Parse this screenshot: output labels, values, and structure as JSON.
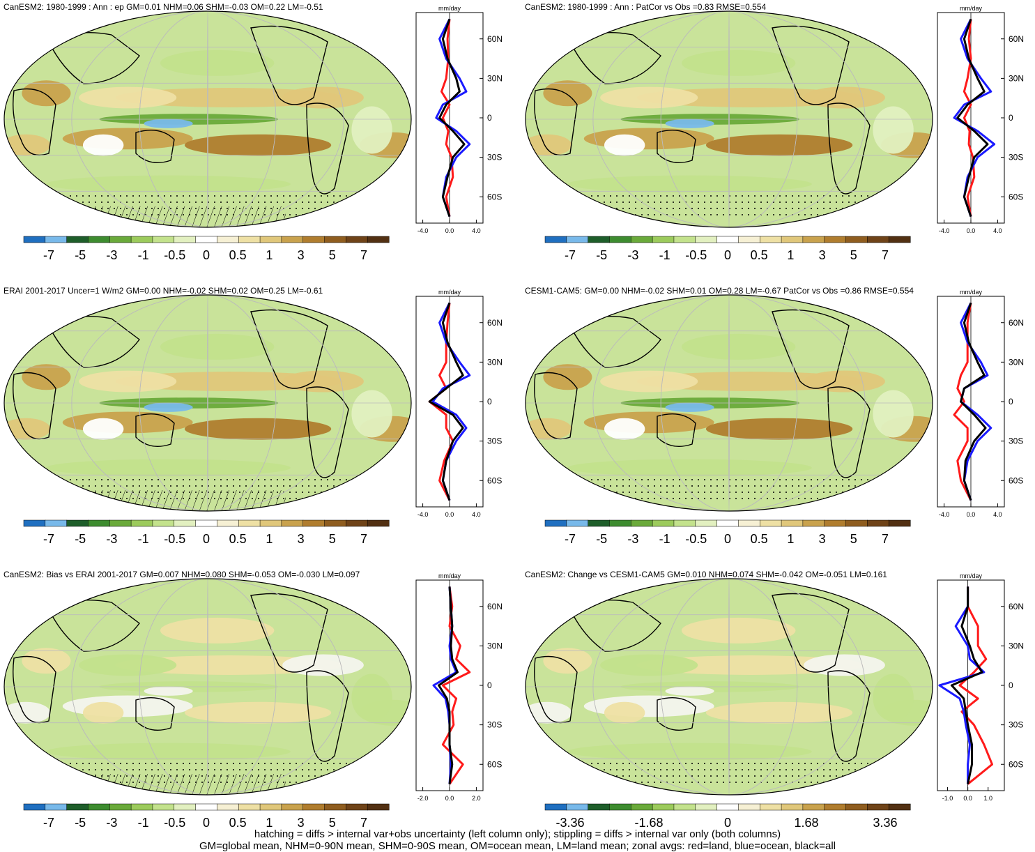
{
  "panels": [
    {
      "title": "CanESM2: 1980-1999 : Ann : ep GM=0.01 NHM=0.06 SHM=-0.03 OM=0.22 LM=-0.51",
      "colorbar_labels": [
        "-7",
        "-5",
        "-3",
        "-1",
        "-0.5",
        "0",
        "0.5",
        "1",
        "3",
        "5",
        "7"
      ],
      "zonal_units": "mm/day",
      "zonal_xticks": [
        "-4.0",
        "0.0",
        "4.0"
      ],
      "lat_ticks": [
        "60N",
        "30N",
        "0",
        "30S",
        "60S"
      ],
      "hatching": true
    },
    {
      "title": "CanESM2: 1980-1999 : Ann : PatCor vs Obs =0.83 RMSE=0.554",
      "colorbar_labels": [
        "-7",
        "-5",
        "-3",
        "-1",
        "-0.5",
        "0",
        "0.5",
        "1",
        "3",
        "5",
        "7"
      ],
      "zonal_units": "mm/day",
      "zonal_xticks": [
        "-4.0",
        "0.0",
        "4.0"
      ],
      "lat_ticks": [
        "60N",
        "30N",
        "0",
        "30S",
        "60S"
      ],
      "hatching": false
    },
    {
      "title": "ERAI 2001-2017 Uncer=1 W/m2 GM=0.00 NHM=-0.02 SHM=0.02 OM=0.25 LM=-0.61",
      "colorbar_labels": [
        "-7",
        "-5",
        "-3",
        "-1",
        "-0.5",
        "0",
        "0.5",
        "1",
        "3",
        "5",
        "7"
      ],
      "zonal_units": "mm/day",
      "zonal_xticks": [
        "-4.0",
        "0.0",
        "4.0"
      ],
      "lat_ticks": [
        "60N",
        "30N",
        "0",
        "30S",
        "60S"
      ],
      "hatching": true
    },
    {
      "title": "CESM1-CAM5: GM=0.00 NHM=-0.02 SHM=0.01 OM=0.28 LM=-0.67 PatCor vs Obs =0.86 RMSE=0.554",
      "colorbar_labels": [
        "-7",
        "-5",
        "-3",
        "-1",
        "-0.5",
        "0",
        "0.5",
        "1",
        "3",
        "5",
        "7"
      ],
      "zonal_units": "mm/day",
      "zonal_xticks": [
        "-4.0",
        "0.0",
        "4.0"
      ],
      "lat_ticks": [
        "60N",
        "30N",
        "0",
        "30S",
        "60S"
      ],
      "hatching": false
    },
    {
      "title": "CanESM2: Bias vs ERAI 2001-2017 GM=0.007 NHM=0.080 SHM=-0.053 OM=-0.030 LM=0.097",
      "colorbar_labels": [
        "-7",
        "-5",
        "-3",
        "-1",
        "-0.5",
        "0",
        "0.5",
        "1",
        "3",
        "5",
        "7"
      ],
      "zonal_units": "mm/day",
      "zonal_xticks": [
        "-2.0",
        "0.0",
        "2.0"
      ],
      "lat_ticks": [
        "60N",
        "30N",
        "0",
        "30S",
        "60S"
      ],
      "hatching": true
    },
    {
      "title": "CanESM2: Change vs CESM1-CAM5 GM=0.010 NHM=0.074 SHM=-0.042 OM=-0.051 LM=0.161",
      "colorbar_labels": [
        "-3.36",
        "-1.68",
        "0",
        "1.68",
        "3.36"
      ],
      "zonal_units": "mm/day",
      "zonal_xticks": [
        "-1.0",
        "0.0",
        "1.0"
      ],
      "lat_ticks": [
        "60N",
        "30N",
        "0",
        "30S",
        "60S"
      ],
      "hatching": false
    }
  ],
  "colors": {
    "colorbar": [
      "#1f6fc0",
      "#78b9ea",
      "#1e5e2a",
      "#3d8c2f",
      "#6aaa3a",
      "#9ccb5c",
      "#c3e28c",
      "#e2f0c0",
      "#ffffff",
      "#f6f0d4",
      "#eee0a4",
      "#e0c77a",
      "#c9a24d",
      "#b07d2e",
      "#8f5d1f",
      "#6f4318",
      "#523012"
    ],
    "land_series": "#ff1a1a",
    "ocean_series": "#1a1aff",
    "all_series": "#000000"
  },
  "footer": {
    "line1": "hatching = diffs > internal var+obs uncertainty (left column only); stippling = diffs > internal var only (both columns)",
    "line2": "GM=global mean, NHM=0-90N mean, SHM=0-90S mean, OM=ocean mean, LM=land mean; zonal avgs: red=land, blue=ocean, black=all"
  },
  "chart_data": [
    {
      "type": "line",
      "title": "CanESM2: 1980-1999 : Ann : ep GM=0.01 NHM=0.06 SHM=-0.03 OM=0.22 LM=-0.51",
      "xlabel": "mm/day",
      "xlim": [
        -5,
        5
      ],
      "ylim": [
        -80,
        80
      ],
      "y": [
        -75,
        -60,
        -45,
        -30,
        -20,
        -10,
        0,
        10,
        20,
        30,
        45,
        60,
        75
      ],
      "series": [
        {
          "name": "land",
          "x": [
            0.0,
            -0.5,
            0.5,
            0.3,
            -0.5,
            -0.2,
            -1.0,
            0.0,
            -1.2,
            -0.5,
            -0.2,
            -0.3,
            0.0
          ]
        },
        {
          "name": "ocean",
          "x": [
            0.0,
            -1.0,
            -0.5,
            1.0,
            3.0,
            1.0,
            -2.0,
            -1.0,
            2.5,
            1.5,
            -0.5,
            -1.5,
            0.0
          ]
        },
        {
          "name": "all",
          "x": [
            0.0,
            -1.0,
            -0.3,
            0.5,
            2.2,
            0.5,
            -1.5,
            -0.5,
            1.5,
            1.0,
            -0.3,
            -1.0,
            0.0
          ]
        }
      ]
    },
    {
      "type": "line",
      "title": "CanESM2: 1980-1999 : Ann : PatCor vs Obs =0.83 RMSE=0.554",
      "xlabel": "mm/day",
      "xlim": [
        -5,
        5
      ],
      "ylim": [
        -80,
        80
      ],
      "y": [
        -75,
        -60,
        -45,
        -30,
        -20,
        -10,
        0,
        10,
        20,
        30,
        45,
        60,
        75
      ],
      "series": [
        {
          "name": "land",
          "x": [
            0.0,
            -0.5,
            0.5,
            0.3,
            -0.3,
            -0.2,
            -1.0,
            0.0,
            -1.0,
            -0.5,
            0.0,
            -0.3,
            0.0
          ]
        },
        {
          "name": "ocean",
          "x": [
            0.0,
            -1.0,
            -0.5,
            1.0,
            3.5,
            1.0,
            -2.5,
            -1.0,
            3.0,
            1.5,
            -0.5,
            -1.5,
            0.0
          ]
        },
        {
          "name": "all",
          "x": [
            0.0,
            -1.0,
            -0.3,
            0.5,
            2.5,
            0.5,
            -2.0,
            -0.5,
            2.0,
            1.0,
            -0.3,
            -1.0,
            0.0
          ]
        }
      ]
    },
    {
      "type": "line",
      "title": "ERAI 2001-2017 Uncer=1 W/m2 GM=0.00 NHM=-0.02 SHM=0.02 OM=0.25 LM=-0.61",
      "xlabel": "mm/day",
      "xlim": [
        -5,
        5
      ],
      "ylim": [
        -80,
        80
      ],
      "y": [
        -75,
        -60,
        -45,
        -30,
        -20,
        -10,
        0,
        10,
        20,
        30,
        45,
        60,
        75
      ],
      "series": [
        {
          "name": "land",
          "x": [
            0.0,
            -1.5,
            -0.8,
            0.5,
            -0.5,
            -0.5,
            -3.0,
            -0.5,
            -1.5,
            -0.5,
            -0.5,
            -0.3,
            0.0
          ]
        },
        {
          "name": "ocean",
          "x": [
            0.0,
            -1.0,
            -0.5,
            1.0,
            2.5,
            1.0,
            -2.5,
            -1.0,
            3.0,
            1.5,
            -0.5,
            -1.5,
            0.0
          ]
        },
        {
          "name": "all",
          "x": [
            0.0,
            -1.0,
            -0.5,
            0.5,
            2.0,
            0.5,
            -3.0,
            -0.5,
            2.0,
            1.0,
            -0.3,
            -1.0,
            0.0
          ]
        }
      ]
    },
    {
      "type": "line",
      "title": "CESM1-CAM5: GM=0.00 NHM=-0.02 SHM=0.01 OM=0.28 LM=-0.67 PatCor vs Obs =0.86 RMSE=0.554",
      "xlabel": "mm/day",
      "xlim": [
        -5,
        5
      ],
      "ylim": [
        -80,
        80
      ],
      "y": [
        -75,
        -60,
        -45,
        -30,
        -20,
        -10,
        0,
        10,
        20,
        30,
        45,
        60,
        75
      ],
      "series": [
        {
          "name": "land",
          "x": [
            0.0,
            -1.5,
            -2.0,
            -0.5,
            -0.5,
            -2.5,
            -1.0,
            -2.0,
            -1.5,
            -0.5,
            -0.5,
            -0.5,
            0.0
          ]
        },
        {
          "name": "ocean",
          "x": [
            0.0,
            -1.0,
            -0.5,
            1.0,
            3.0,
            1.0,
            -1.5,
            -1.0,
            2.5,
            1.5,
            -0.5,
            -1.5,
            0.0
          ]
        },
        {
          "name": "all",
          "x": [
            0.0,
            -1.0,
            -0.8,
            0.5,
            2.2,
            0.5,
            -1.5,
            -1.0,
            2.0,
            1.0,
            -0.3,
            -1.0,
            0.0
          ]
        }
      ]
    },
    {
      "type": "line",
      "title": "CanESM2: Bias vs ERAI 2001-2017 GM=0.007 NHM=0.080 SHM=-0.053 OM=-0.030 LM=0.097",
      "xlabel": "mm/day",
      "xlim": [
        -2.5,
        2.5
      ],
      "ylim": [
        -80,
        80
      ],
      "y": [
        -75,
        -60,
        -45,
        -30,
        -20,
        -10,
        0,
        10,
        20,
        30,
        45,
        60,
        75
      ],
      "series": [
        {
          "name": "land",
          "x": [
            0.0,
            1.0,
            -0.5,
            0.3,
            0.2,
            0.5,
            -0.5,
            1.5,
            0.5,
            0.8,
            0.0,
            0.2,
            0.0
          ]
        },
        {
          "name": "ocean",
          "x": [
            0.0,
            0.1,
            0.0,
            0.0,
            -0.1,
            -0.3,
            -1.2,
            0.5,
            0.1,
            0.0,
            0.2,
            0.1,
            0.0
          ]
        },
        {
          "name": "all",
          "x": [
            0.0,
            0.2,
            0.0,
            0.0,
            0.0,
            -0.2,
            -0.8,
            0.6,
            0.2,
            0.1,
            0.2,
            0.1,
            0.0
          ]
        }
      ]
    },
    {
      "type": "line",
      "title": "CanESM2: Change vs CESM1-CAM5 GM=0.010 NHM=0.074 SHM=-0.042 OM=-0.051 LM=0.161",
      "xlabel": "mm/day",
      "xlim": [
        -1.5,
        1.8
      ],
      "ylim": [
        -80,
        80
      ],
      "y": [
        -75,
        -60,
        -45,
        -30,
        -20,
        -10,
        0,
        10,
        20,
        30,
        45,
        60,
        75
      ],
      "series": [
        {
          "name": "land",
          "x": [
            0.0,
            1.2,
            0.8,
            0.3,
            -0.3,
            0.5,
            -0.4,
            0.3,
            0.9,
            0.5,
            0.5,
            0.0,
            0.0
          ]
        },
        {
          "name": "ocean",
          "x": [
            0.0,
            0.0,
            0.1,
            -0.1,
            -0.2,
            -0.4,
            -1.4,
            0.8,
            0.1,
            0.0,
            -0.6,
            0.0,
            0.0
          ]
        },
        {
          "name": "all",
          "x": [
            0.0,
            0.2,
            0.2,
            0.0,
            -0.1,
            -0.2,
            -0.8,
            0.7,
            0.3,
            0.1,
            -0.3,
            0.0,
            0.0
          ]
        }
      ]
    }
  ]
}
